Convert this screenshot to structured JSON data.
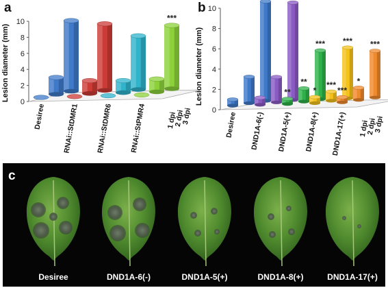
{
  "figure": {
    "panel_c": {
      "label": "c",
      "leaves": [
        "Desiree",
        "DND1A-6(-)",
        "DND1A-5(+)",
        "DND1A-8(+)",
        "DND1A-17(+)"
      ]
    }
  },
  "chart_data": [
    {
      "panel": "a",
      "type": "bar",
      "style": "3d-grouped",
      "ylabel": "Lesion diameter (mm)",
      "ylim": [
        0,
        10
      ],
      "yticks": [
        0,
        2,
        4,
        6,
        8,
        10
      ],
      "categories": [
        "Desiree",
        "RNAi::StDMR1",
        "RNAi::StDMR6",
        "RNAi::StPMR4"
      ],
      "depth_labels": [
        "1 dpi",
        "2 dpi",
        "3 dpi"
      ],
      "colors": [
        "#3f79c9",
        "#cc3b35",
        "#2fb4cc",
        "#8cd13a"
      ],
      "series": [
        {
          "values": [
            0,
            0,
            0,
            0
          ]
        },
        {
          "values": [
            2.1,
            1.6,
            1.5,
            1.6
          ]
        },
        {
          "values": [
            8.8,
            8.3,
            6.7,
            7.9
          ]
        }
      ],
      "annotations": [
        {
          "category": "RNAi::StPMR4",
          "depth": "3 dpi",
          "text": "***"
        }
      ]
    },
    {
      "panel": "b",
      "type": "bar",
      "style": "3d-grouped",
      "ylabel": "Lesion diameter (mm)",
      "ylim": [
        0,
        10
      ],
      "yticks": [
        0,
        2,
        4,
        6,
        8,
        10
      ],
      "categories": [
        "Desiree",
        "DND1A-6(-)",
        "DND1A-5(+)",
        "DND1A-8(+)",
        "DND1A-17(+)"
      ],
      "depth_labels": [
        "1 dpi",
        "2 dpi",
        "3 dpi"
      ],
      "colors": [
        "#3f79c9",
        "#8a5bc4",
        "#2fb14a",
        "#f4c21b",
        "#f08a2c"
      ],
      "series": [
        {
          "values": [
            0.6,
            0.7,
            0.5,
            0.6,
            0.5
          ]
        },
        {
          "values": [
            2.6,
            2.5,
            1.3,
            0.9,
            1.2
          ]
        },
        {
          "values": [
            9.8,
            9.6,
            4.8,
            5.0,
            4.6
          ]
        }
      ],
      "annotations": [
        {
          "category": "DND1A-5(+)",
          "depth": "1 dpi",
          "text": "**"
        },
        {
          "category": "DND1A-5(+)",
          "depth": "2 dpi",
          "text": "**"
        },
        {
          "category": "DND1A-5(+)",
          "depth": "3 dpi",
          "text": "***"
        },
        {
          "category": "DND1A-8(+)",
          "depth": "1 dpi",
          "text": "*"
        },
        {
          "category": "DND1A-8(+)",
          "depth": "2 dpi",
          "text": "***"
        },
        {
          "category": "DND1A-8(+)",
          "depth": "3 dpi",
          "text": "***"
        },
        {
          "category": "DND1A-17(+)",
          "depth": "1 dpi",
          "text": "***"
        },
        {
          "category": "DND1A-17(+)",
          "depth": "2 dpi",
          "text": "*"
        },
        {
          "category": "DND1A-17(+)",
          "depth": "3 dpi",
          "text": "***"
        }
      ]
    }
  ]
}
